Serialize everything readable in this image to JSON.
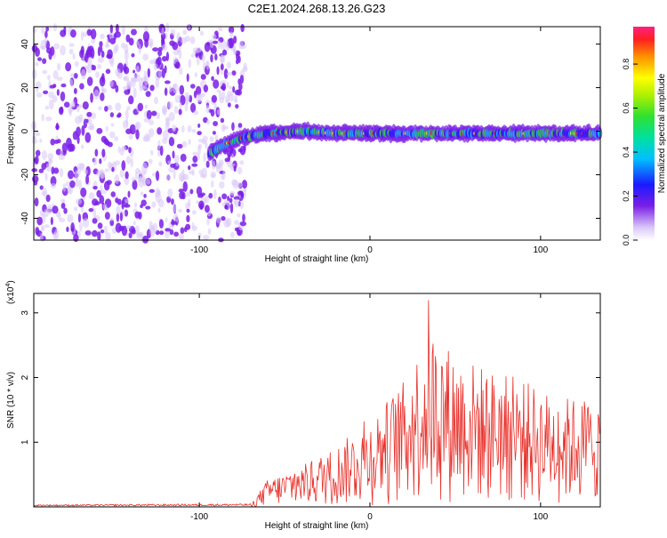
{
  "title": "C2E1.2024.268.13.26.G23",
  "colors": {
    "axis": "#000000",
    "snr_line": "#e8302a",
    "scatter_purple": "#7a1fe6",
    "scatter_light": "#d9c6f7"
  },
  "chart_data": [
    {
      "type": "heatmap",
      "xlabel": "Height of straight line (km)",
      "ylabel": "Frequency (Hz)",
      "xlim": [
        -197,
        135
      ],
      "ylim": [
        -50,
        48
      ],
      "xticks": [
        -100,
        0,
        100
      ],
      "xtick_labels": [
        "-100",
        "0",
        "100"
      ],
      "yticks": [
        -40,
        -20,
        0,
        20,
        40
      ],
      "ytick_labels": [
        "-40",
        "-20",
        "0",
        "20",
        "40"
      ],
      "grid": false,
      "signal_track": {
        "x": [
          -94,
          -85,
          -75,
          -60,
          -40,
          -20,
          0,
          40,
          80,
          135
        ],
        "y": [
          -10,
          -6,
          -3,
          -1,
          0,
          -1,
          -1,
          -1,
          -1,
          -1
        ]
      },
      "noise_region_x": [
        -197,
        -78
      ],
      "colorbar": {
        "label": "Normalized spectral amplitude",
        "range": [
          0,
          0.97
        ],
        "ticks": [
          0,
          0.2,
          0.4,
          0.6,
          0.8
        ],
        "tick_labels": [
          "0.0",
          "0.2",
          "0.4",
          "0.6",
          "0.8"
        ]
      }
    },
    {
      "type": "line",
      "xlabel": "Height of straight line (km)",
      "ylabel": "SNR (10 * v/v)",
      "yscale_label": "(x10",
      "yscale_exp": "4",
      "yscale_close": ")",
      "xlim": [
        -197,
        135
      ],
      "ylim": [
        0,
        3.3
      ],
      "xticks": [
        -100,
        0,
        100
      ],
      "xtick_labels": [
        "-100",
        "0",
        "100"
      ],
      "yticks": [
        1,
        2,
        3
      ],
      "ytick_labels": [
        "1",
        "2",
        "3"
      ],
      "grid": false,
      "envelope": {
        "x": [
          -197,
          -70,
          -60,
          -40,
          -20,
          0,
          20,
          35,
          50,
          70,
          90,
          110,
          135
        ],
        "y": [
          0.03,
          0.04,
          0.5,
          0.75,
          1.1,
          1.6,
          2.3,
          3.3,
          2.8,
          2.5,
          2.3,
          2.0,
          2.0
        ]
      }
    }
  ]
}
